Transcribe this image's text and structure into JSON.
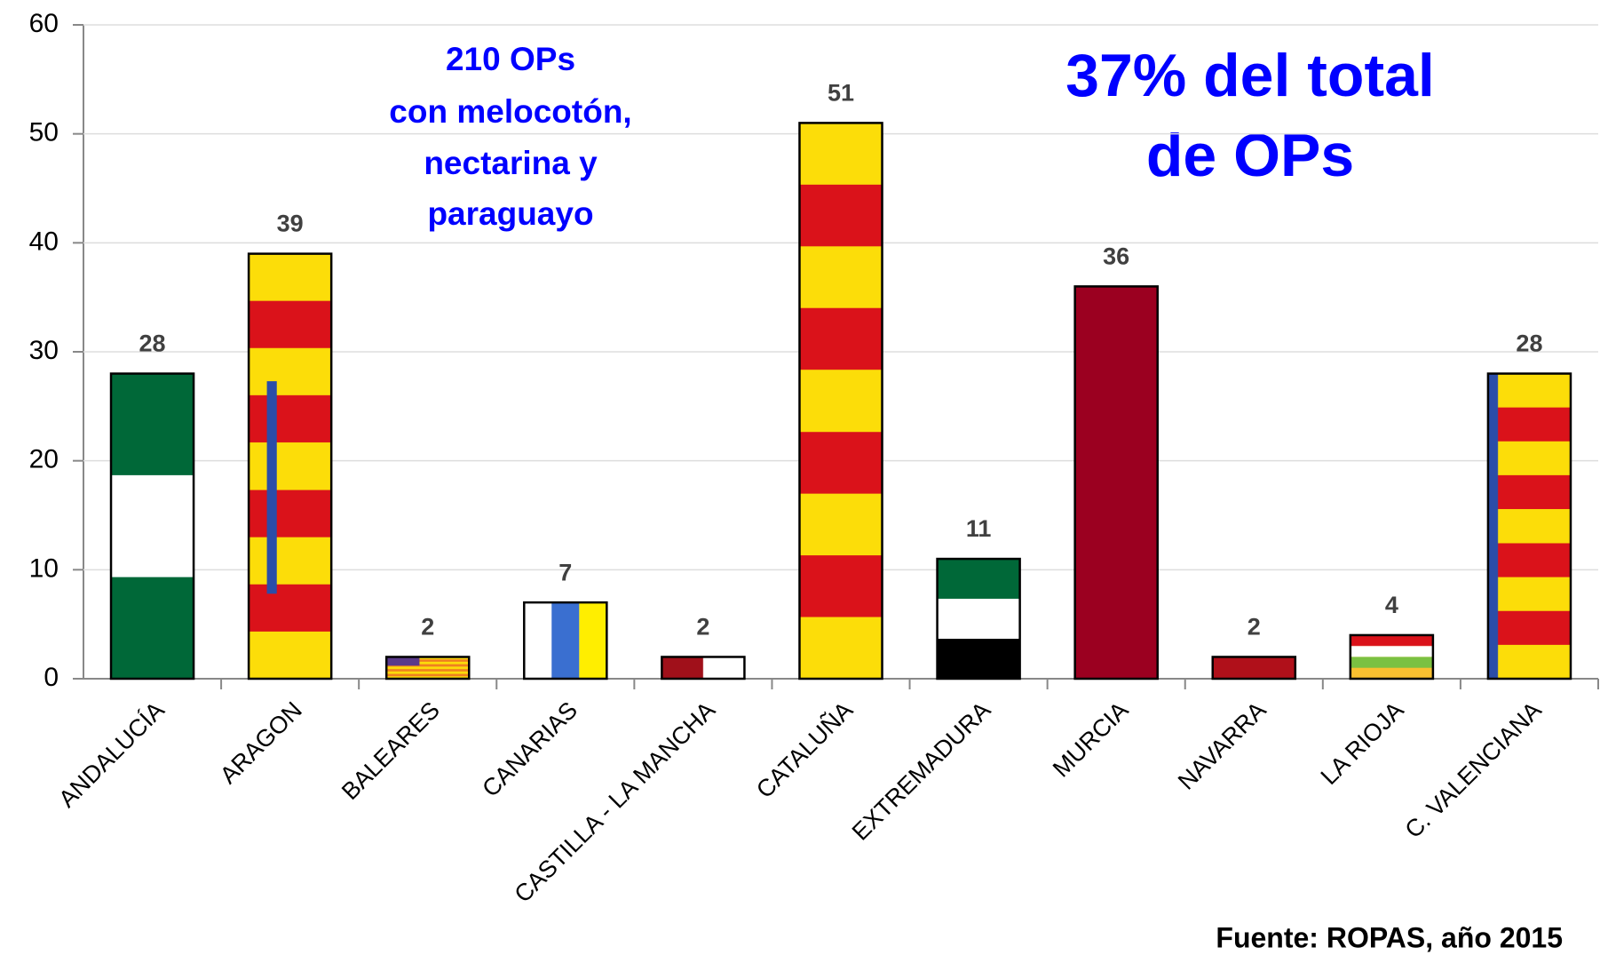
{
  "chart_data": {
    "type": "bar",
    "categories": [
      "ANDALUCÍA",
      "ARAGON",
      "BALEARES",
      "CANARIAS",
      "CASTILLA - LA MANCHA",
      "CATALUÑA",
      "EXTREMADURA",
      "MURCIA",
      "NAVARRA",
      "LA RIOJA",
      "C. VALENCIANA"
    ],
    "values": [
      28,
      39,
      2,
      7,
      2,
      51,
      11,
      36,
      2,
      4,
      28
    ],
    "ylim": [
      0,
      60
    ],
    "yticks": [
      0,
      10,
      20,
      30,
      40,
      50,
      60
    ],
    "grid": true,
    "annotations": [
      "210 OPs",
      "con melocotón,",
      "nectarina y",
      "paraguayo",
      "37% del total",
      "de OPs"
    ],
    "source": "Fuente: ROPAS, año 2015"
  }
}
